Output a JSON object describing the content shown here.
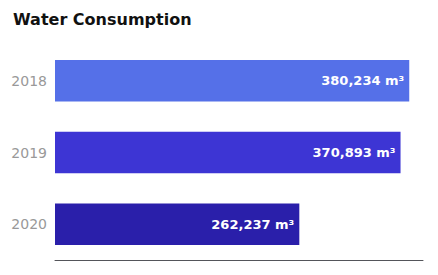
{
  "chart_data": {
    "type": "bar",
    "title": "Water Consumption",
    "orientation": "horizontal",
    "categories": [
      "2018",
      "2019",
      "2020"
    ],
    "values": [
      380234,
      370893,
      262237
    ],
    "value_labels": [
      "380,234 m³",
      "370,893 m³",
      "262,237 m³"
    ],
    "data_labels": true,
    "colors": [
      "#5570e8",
      "#3d35d4",
      "#2a1faa"
    ],
    "xlim": [
      0,
      395000
    ],
    "tick_labels": "y",
    "grid": false
  }
}
